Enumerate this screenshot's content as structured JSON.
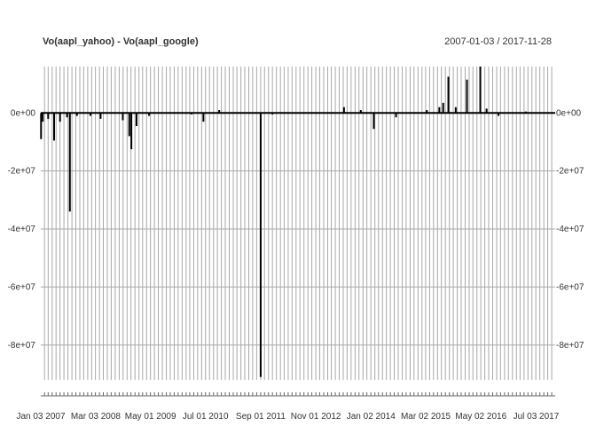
{
  "chart_data": {
    "type": "bar",
    "title": "Vo(aapl_yahoo) - Vo(aapl_google)",
    "date_range_label": "2007-01-03 / 2017-11-28",
    "x_range": [
      "2007-01-03",
      "2017-11-28"
    ],
    "x_tick_labels": [
      {
        "label": "Jan 03 2007",
        "date": "2007-01-03"
      },
      {
        "label": "Mar 03 2008",
        "date": "2008-03-03"
      },
      {
        "label": "May 01 2009",
        "date": "2009-05-01"
      },
      {
        "label": "Jul 01 2010",
        "date": "2010-07-01"
      },
      {
        "label": "Sep 01 2011",
        "date": "2011-09-01"
      },
      {
        "label": "Nov 01 2012",
        "date": "2012-11-01"
      },
      {
        "label": "Jan 02 2014",
        "date": "2014-01-02"
      },
      {
        "label": "Mar 02 2015",
        "date": "2015-03-02"
      },
      {
        "label": "May 02 2016",
        "date": "2016-05-02"
      },
      {
        "label": "Jul 03 2017",
        "date": "2017-07-03"
      }
    ],
    "y_tick_labels": [
      {
        "label": "0e+00",
        "value": 0
      },
      {
        "label": "-2e+07",
        "value": -20000000
      },
      {
        "label": "-4e+07",
        "value": -40000000
      },
      {
        "label": "-6e+07",
        "value": -60000000
      },
      {
        "label": "-8e+07",
        "value": -80000000
      }
    ],
    "ylim": [
      -92000000,
      16000000
    ],
    "grid": true,
    "series": [
      {
        "color": "#000000",
        "points": [
          {
            "date": "2007-01-05",
            "value": -9000000
          },
          {
            "date": "2007-01-18",
            "value": -3000000
          },
          {
            "date": "2007-03-01",
            "value": -2000000
          },
          {
            "date": "2007-04-16",
            "value": -9500000
          },
          {
            "date": "2007-06-01",
            "value": -3000000
          },
          {
            "date": "2007-07-25",
            "value": -1500000
          },
          {
            "date": "2007-08-16",
            "value": -34000000
          },
          {
            "date": "2007-10-10",
            "value": -1000000
          },
          {
            "date": "2008-01-22",
            "value": -1000000
          },
          {
            "date": "2008-04-10",
            "value": -2000000
          },
          {
            "date": "2008-09-29",
            "value": -2500000
          },
          {
            "date": "2008-11-18",
            "value": -8000000
          },
          {
            "date": "2008-12-04",
            "value": -12500000
          },
          {
            "date": "2009-01-13",
            "value": -4500000
          },
          {
            "date": "2009-04-20",
            "value": -1000000
          },
          {
            "date": "2010-03-15",
            "value": -500000
          },
          {
            "date": "2010-06-15",
            "value": -3000000
          },
          {
            "date": "2010-10-15",
            "value": 1000000
          },
          {
            "date": "2011-09-01",
            "value": -91000000
          },
          {
            "date": "2011-12-01",
            "value": -500000
          },
          {
            "date": "2013-06-07",
            "value": 2000000
          },
          {
            "date": "2013-10-15",
            "value": 1000000
          },
          {
            "date": "2014-01-24",
            "value": -5500000
          },
          {
            "date": "2014-07-15",
            "value": -1500000
          },
          {
            "date": "2015-03-10",
            "value": 1000000
          },
          {
            "date": "2015-06-15",
            "value": 2000000
          },
          {
            "date": "2015-07-15",
            "value": 3500000
          },
          {
            "date": "2015-08-24",
            "value": 12500000
          },
          {
            "date": "2015-10-20",
            "value": 2000000
          },
          {
            "date": "2016-01-15",
            "value": 11500000
          },
          {
            "date": "2016-04-27",
            "value": 16000000
          },
          {
            "date": "2016-06-15",
            "value": 1500000
          },
          {
            "date": "2016-09-15",
            "value": -1000000
          },
          {
            "date": "2017-04-15",
            "value": 500000
          }
        ]
      }
    ]
  }
}
